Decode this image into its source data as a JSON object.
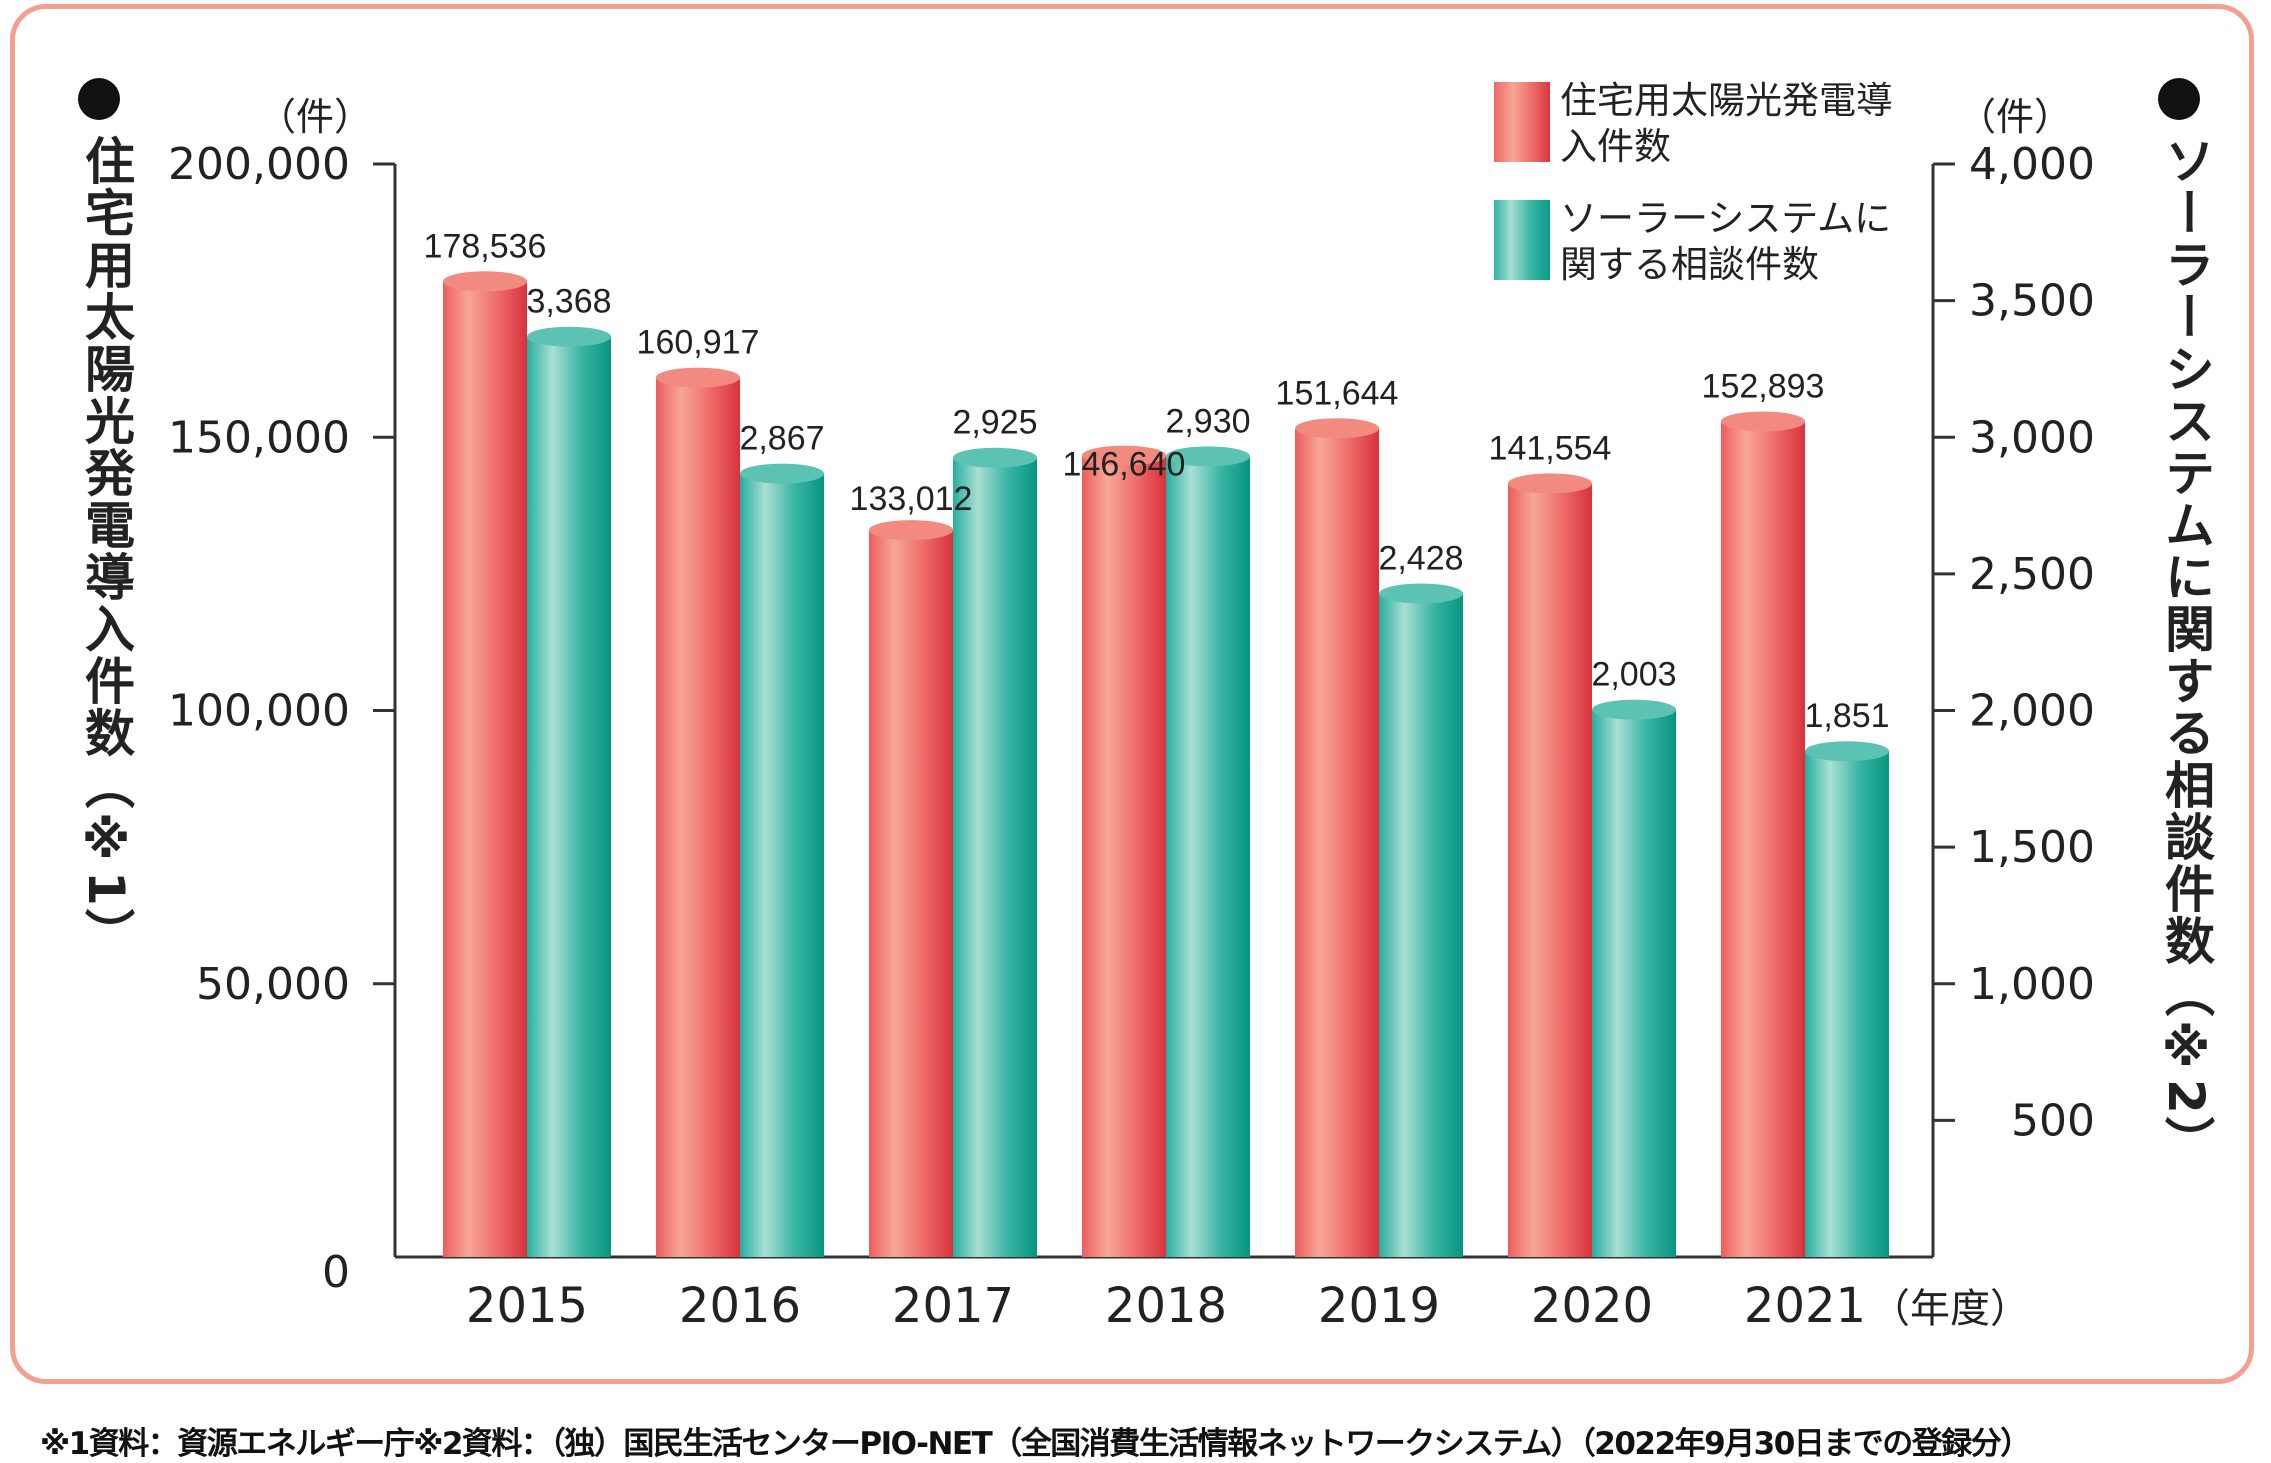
{
  "chart_data": {
    "type": "bar",
    "categories": [
      "2015",
      "2016",
      "2017",
      "2018",
      "2019",
      "2020",
      "2021"
    ],
    "x_unit": "（年度）",
    "series": [
      {
        "name": "住宅用太陽光発電導入件数",
        "axis": "left",
        "color": "#e8464a",
        "values": [
          178536,
          160917,
          133012,
          146640,
          151644,
          141554,
          152893
        ],
        "labels": [
          "178,536",
          "160,917",
          "133,012",
          "146,640",
          "151,644",
          "141,554",
          "152,893"
        ]
      },
      {
        "name": "ソーラーシステムに関する相談件数",
        "axis": "right",
        "color": "#13a896",
        "values": [
          3368,
          2867,
          2925,
          2930,
          2428,
          2003,
          1851
        ],
        "labels": [
          "3,368",
          "2,867",
          "2,925",
          "2,930",
          "2,428",
          "2,003",
          "1,851"
        ]
      }
    ],
    "left_axis": {
      "title": "住宅用太陽光発電導入件数（※1）",
      "unit": "（件）",
      "ylim": [
        0,
        200000
      ],
      "ticks": [
        "0",
        "50,000",
        "100,000",
        "150,000",
        "200,000"
      ]
    },
    "right_axis": {
      "title": "ソーラーシステムに関する相談件数（※2）",
      "unit": "（件）",
      "ylim": [
        0,
        4000
      ],
      "ticks": [
        "500",
        "1,000",
        "1,500",
        "2,000",
        "2,500",
        "3,000",
        "3,500",
        "4,000"
      ]
    },
    "legend": {
      "placement": "top-right",
      "items": [
        "住宅用太陽光発電導入件数",
        "ソーラーシステムに関する相談件数"
      ]
    },
    "grid": false
  },
  "footnote": "※1資料：資源エネルギー庁※2資料：（独）国民生活センターPIO-NET（全国消費生活情報ネットワークシステム）（2022年9月30日までの登録分）",
  "frame_color": "#f3a090"
}
